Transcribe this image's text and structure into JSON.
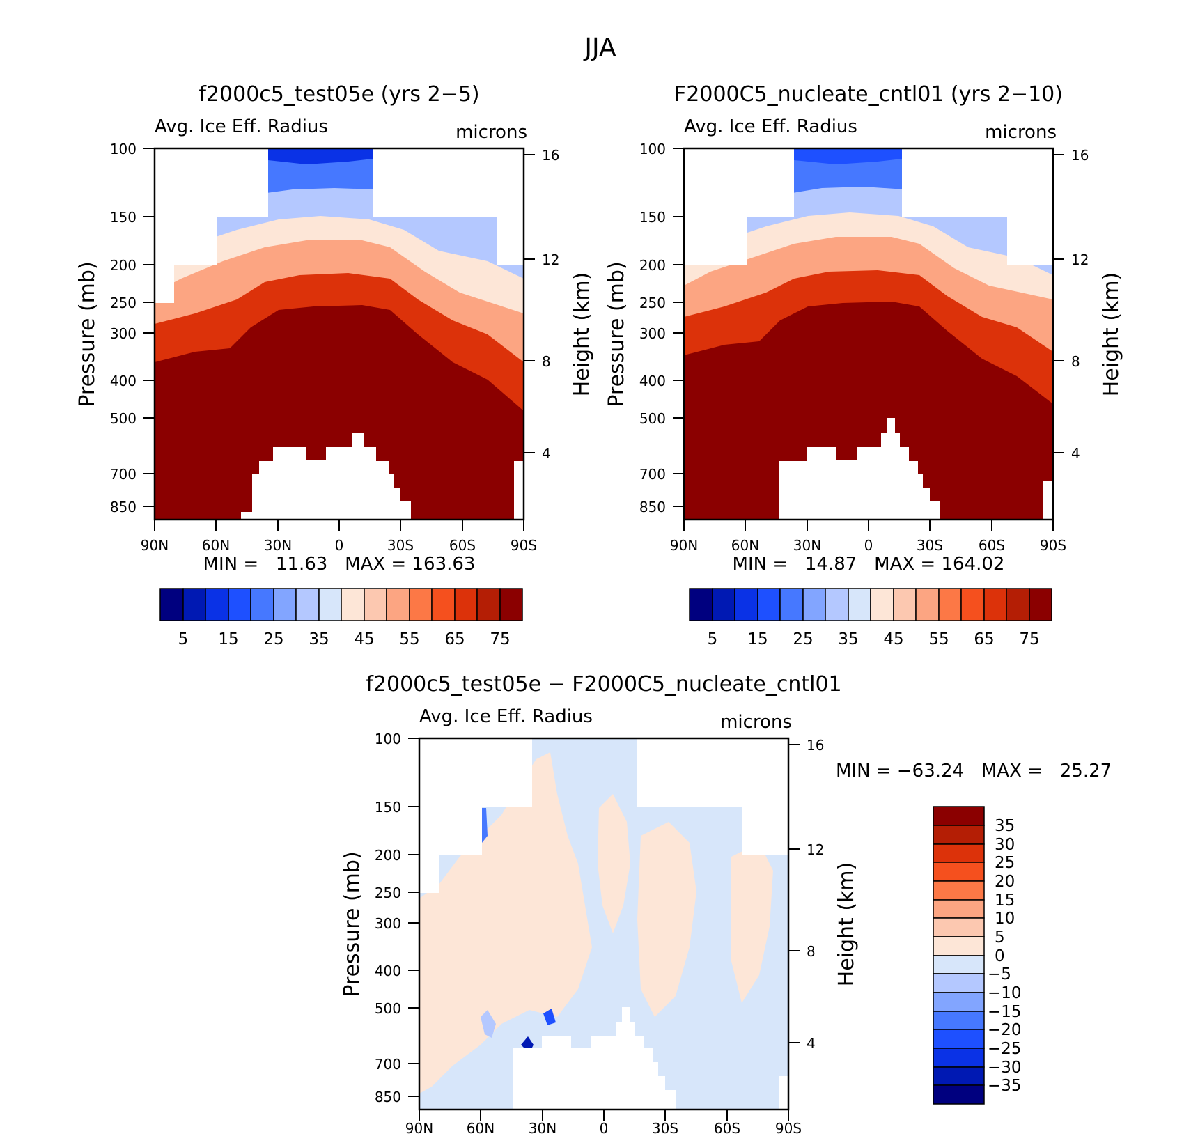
{
  "figure": {
    "title": "JJA"
  },
  "chart_data": [
    {
      "type": "heatmap",
      "title": "f2000c5_test05e (yrs 2−5)",
      "left_label": "Avg. Ice Eff. Radius",
      "right_label": "microns",
      "ylabel": "Pressure (mb)",
      "ylabel_right": "Height (km)",
      "x_ticks": [
        "90N",
        "60N",
        "30N",
        "0",
        "30S",
        "60S",
        "90S"
      ],
      "y_ticks": [
        100,
        150,
        200,
        250,
        300,
        400,
        500,
        700,
        850
      ],
      "y_ticks_right": [
        16,
        12,
        8,
        4
      ],
      "ylim": [
        100,
        925
      ],
      "xlim": [
        90,
        -90
      ],
      "stats": "MIN =   11.63   MAX = 163.63",
      "min": 11.63,
      "max": 163.63,
      "colorbar": {
        "orientation": "horizontal",
        "labels": [
          "5",
          "15",
          "25",
          "35",
          "45",
          "55",
          "65",
          "75"
        ],
        "levels": [
          5,
          10,
          15,
          20,
          25,
          30,
          35,
          40,
          45,
          50,
          55,
          60,
          65,
          70,
          75
        ]
      }
    },
    {
      "type": "heatmap",
      "title": "F2000C5_nucleate_cntl01 (yrs 2−10)",
      "left_label": "Avg. Ice Eff. Radius",
      "right_label": "microns",
      "ylabel": "Pressure (mb)",
      "ylabel_right": "Height (km)",
      "x_ticks": [
        "90N",
        "60N",
        "30N",
        "0",
        "30S",
        "60S",
        "90S"
      ],
      "y_ticks": [
        100,
        150,
        200,
        250,
        300,
        400,
        500,
        700,
        850
      ],
      "y_ticks_right": [
        16,
        12,
        8,
        4
      ],
      "ylim": [
        100,
        925
      ],
      "xlim": [
        90,
        -90
      ],
      "stats": "MIN =   14.87   MAX = 164.02",
      "min": 14.87,
      "max": 164.02,
      "colorbar": {
        "orientation": "horizontal",
        "labels": [
          "5",
          "15",
          "25",
          "35",
          "45",
          "55",
          "65",
          "75"
        ],
        "levels": [
          5,
          10,
          15,
          20,
          25,
          30,
          35,
          40,
          45,
          50,
          55,
          60,
          65,
          70,
          75
        ]
      }
    },
    {
      "type": "heatmap",
      "title": "f2000c5_test05e − F2000C5_nucleate_cntl01",
      "left_label": "Avg. Ice Eff. Radius",
      "right_label": "microns",
      "ylabel": "Pressure (mb)",
      "ylabel_right": "Height (km)",
      "x_ticks": [
        "90N",
        "60N",
        "30N",
        "0",
        "30S",
        "60S",
        "90S"
      ],
      "y_ticks": [
        100,
        150,
        200,
        250,
        300,
        400,
        500,
        700,
        850
      ],
      "y_ticks_right": [
        16,
        12,
        8,
        4
      ],
      "ylim": [
        100,
        925
      ],
      "xlim": [
        90,
        -90
      ],
      "stats": "MIN = −63.24   MAX =   25.27",
      "min": -63.24,
      "max": 25.27,
      "colorbar": {
        "orientation": "vertical",
        "labels": [
          "35",
          "30",
          "25",
          "20",
          "15",
          "10",
          "5",
          "0",
          "−5",
          "−10",
          "−15",
          "−20",
          "−25",
          "−30",
          "−35"
        ],
        "levels": [
          35,
          30,
          25,
          20,
          15,
          10,
          5,
          0,
          -5,
          -10,
          -15,
          -20,
          -25,
          -30,
          -35
        ]
      }
    }
  ],
  "palettes": {
    "sequential": [
      "#00007f",
      "#0019b3",
      "#0a32e6",
      "#1e50ff",
      "#4678ff",
      "#82a5ff",
      "#b4c8ff",
      "#d7e6fa",
      "#fde6d7",
      "#fcc8b0",
      "#fca582",
      "#fc7846",
      "#f5501e",
      "#dc320a",
      "#b41e05",
      "#8b0000"
    ]
  }
}
